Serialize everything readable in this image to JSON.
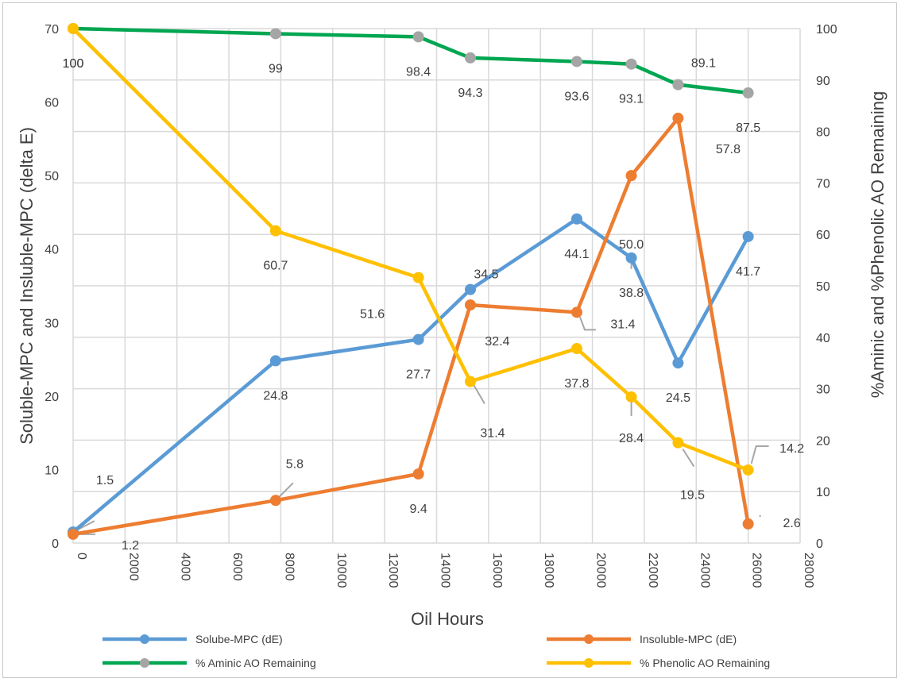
{
  "chart_data": {
    "type": "line",
    "xlabel": "Oil Hours",
    "ylabel_left": "Soluble-MPC and Insluble-MPC (delta E)",
    "ylabel_right": "%Aminic and %Phenolic AO Remaining",
    "xlim": [
      0,
      28000
    ],
    "xticks": [
      "0",
      "2000",
      "4000",
      "6000",
      "8000",
      "10000",
      "12000",
      "14000",
      "16000",
      "18000",
      "20000",
      "22000",
      "24000",
      "26000",
      "28000"
    ],
    "ylim_left": [
      0,
      70
    ],
    "yticks_left": [
      "0",
      "10",
      "20",
      "30",
      "40",
      "50",
      "60",
      "70"
    ],
    "ylim_right": [
      0,
      100
    ],
    "yticks_right": [
      "0",
      "10",
      "20",
      "30",
      "40",
      "50",
      "60",
      "70",
      "80",
      "90",
      "100"
    ],
    "grid": true,
    "legend_position": "bottom",
    "series": [
      {
        "name": "Solube-MPC (dE)",
        "axis": "left",
        "color": "#5b9bd5",
        "x": [
          0,
          7800,
          13300,
          15300,
          19400,
          21500,
          23300,
          26000
        ],
        "y": [
          1.5,
          24.8,
          27.7,
          34.5,
          44.1,
          38.8,
          24.5,
          41.7
        ],
        "labels": [
          "1.5",
          "24.8",
          "27.7",
          "34.5",
          "44.1",
          "38.8",
          "24.5",
          "41.7"
        ]
      },
      {
        "name": "Insoluble-MPC  (dE)",
        "axis": "left",
        "color": "#ed7d31",
        "x": [
          0,
          7800,
          13300,
          15300,
          19400,
          21500,
          23300,
          26000
        ],
        "y": [
          1.2,
          5.8,
          9.4,
          32.4,
          31.4,
          50.0,
          57.8,
          2.6
        ],
        "labels": [
          "1.2",
          "5.8",
          "9.4",
          "32.4",
          "31.4",
          "50.0",
          "57.8",
          "2.6"
        ]
      },
      {
        "name": "% Aminic AO Remaining",
        "axis": "right",
        "color": "#00a651",
        "marker_color": "#a5a5a5",
        "x": [
          0,
          7800,
          13300,
          15300,
          19400,
          21500,
          23300,
          26000
        ],
        "y": [
          100,
          99,
          98.4,
          94.3,
          93.6,
          93.1,
          89.1,
          87.5
        ],
        "labels": [
          "100",
          "99",
          "98.4",
          "94.3",
          "93.6",
          "93.1",
          "89.1",
          "87.5"
        ]
      },
      {
        "name": "% Phenolic AO Remaining",
        "axis": "right",
        "color": "#ffc000",
        "x": [
          0,
          7800,
          13300,
          15300,
          19400,
          21500,
          23300,
          26000
        ],
        "y": [
          100,
          60.7,
          51.6,
          31.4,
          37.8,
          28.4,
          19.5,
          14.2
        ],
        "labels": [
          "100",
          "60.7",
          "51.6",
          "31.4",
          "37.8",
          "28.4",
          "19.5",
          "14.2"
        ]
      }
    ]
  }
}
